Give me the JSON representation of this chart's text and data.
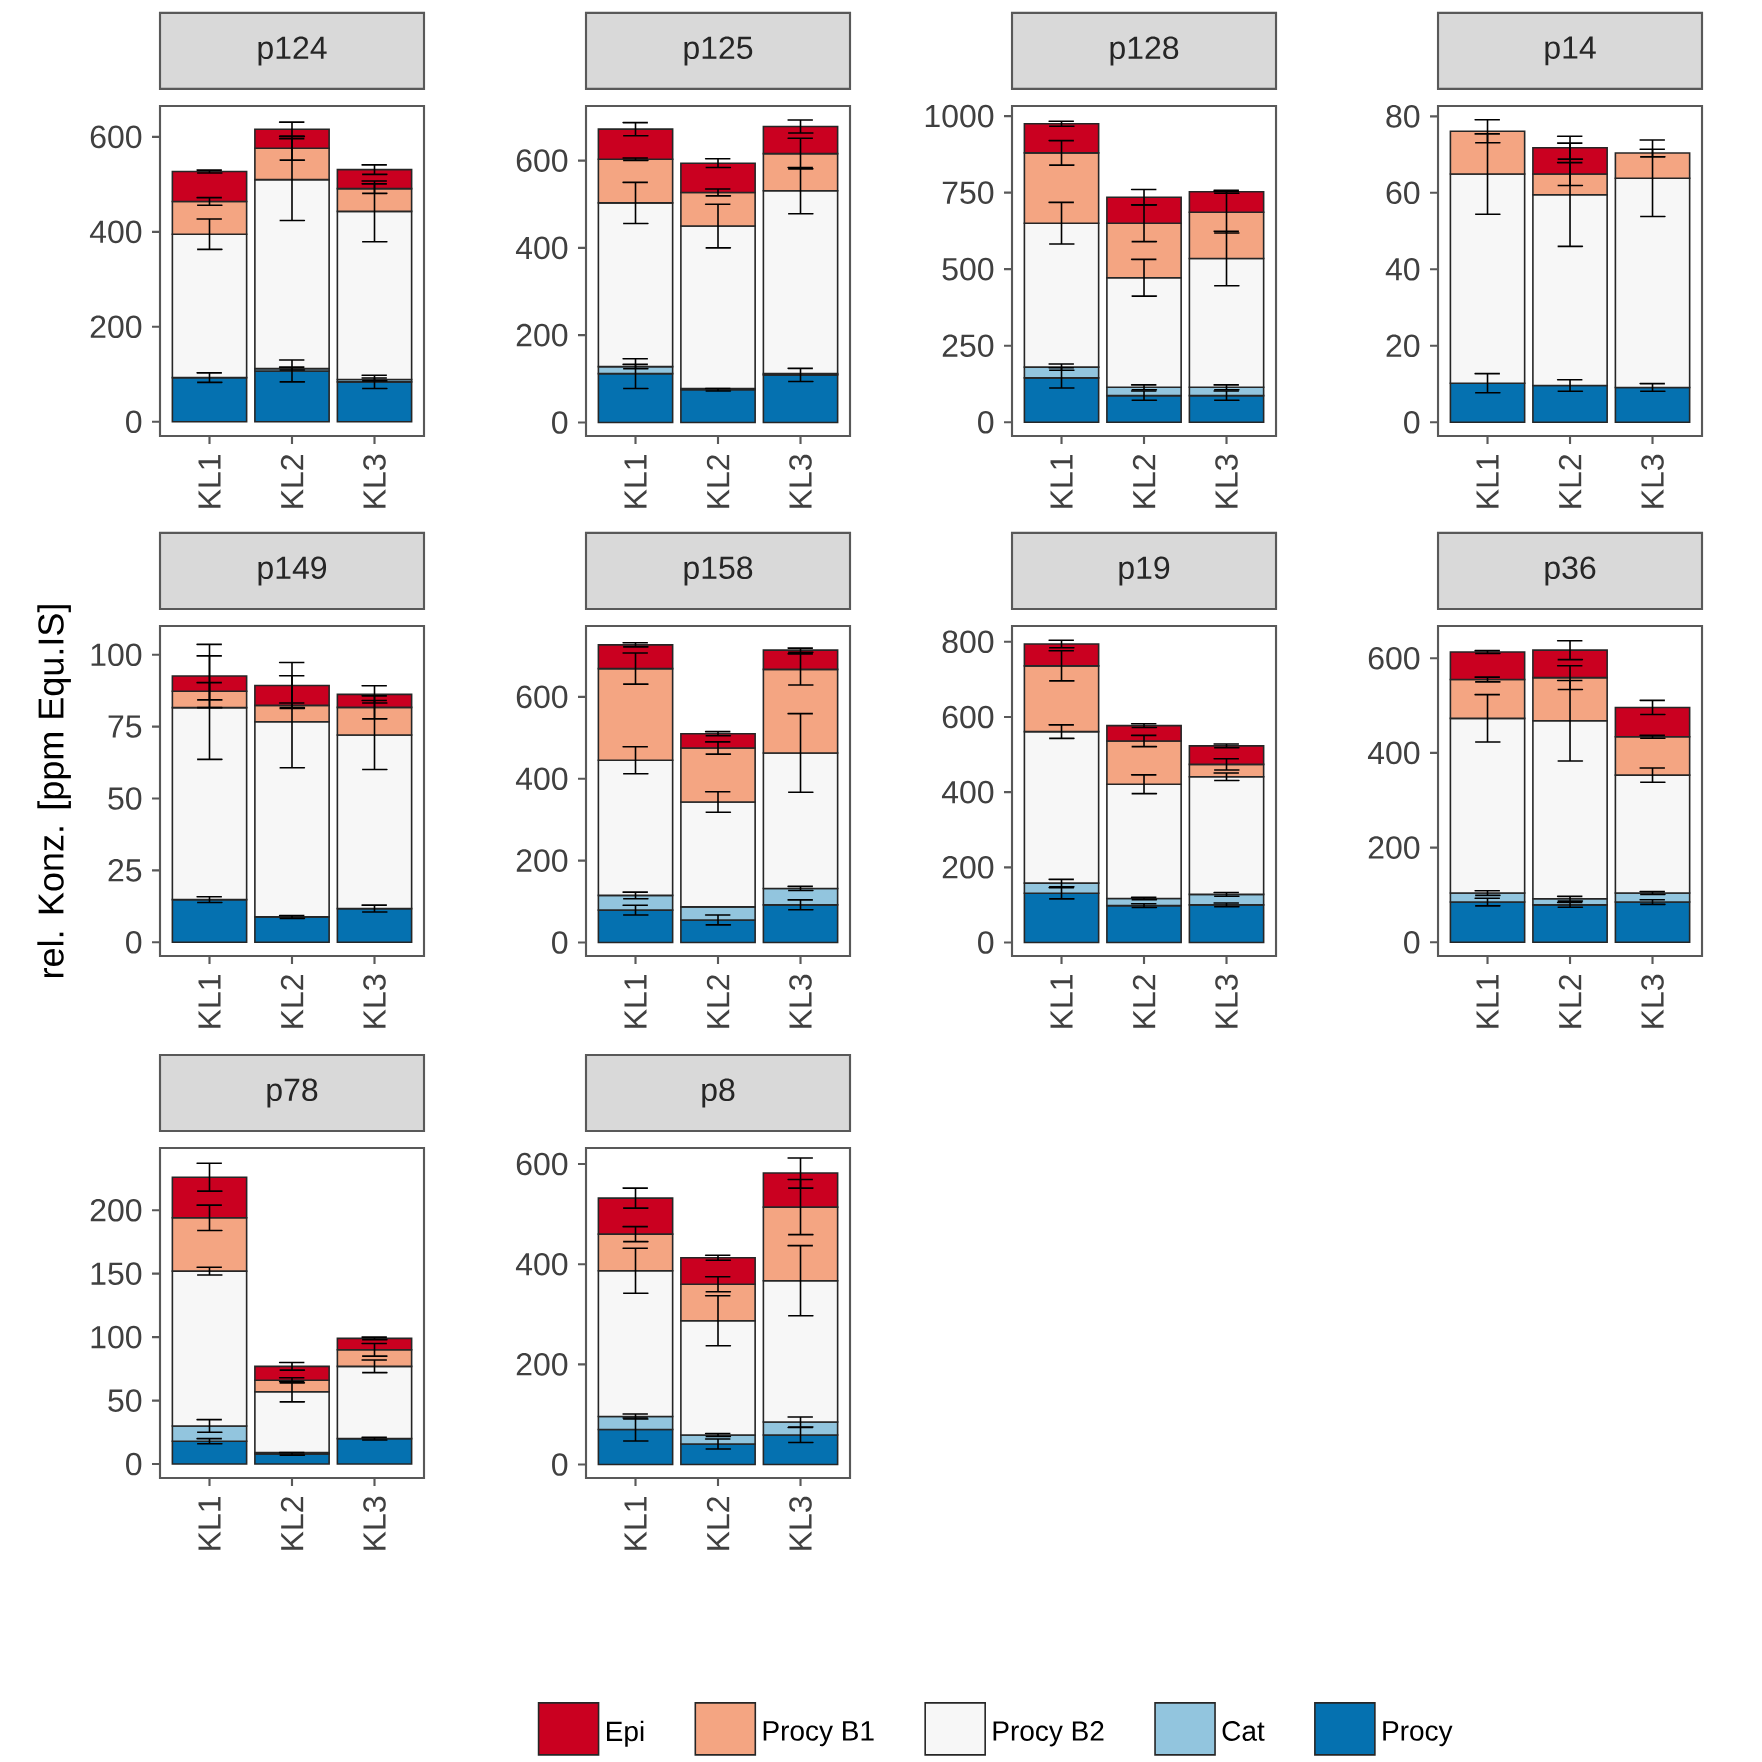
{
  "chart_data": [
    {
      "type": "bar",
      "title": "p124",
      "categories": [
        "KL1",
        "KL2",
        "KL3"
      ],
      "stacked": true,
      "ylim": [
        -30,
        665
      ],
      "yticks": [
        0,
        200,
        400,
        600
      ],
      "series": [
        {
          "color": "#0571b0",
          "values": [
            93,
            107,
            84
          ],
          "errors": [
            10,
            23,
            14
          ]
        },
        {
          "color": "#92c5de",
          "values": [
            null,
            5,
            5
          ],
          "errors": [
            null,
            3,
            3
          ]
        },
        {
          "color": "#f7f7f7",
          "values": [
            302,
            398,
            354
          ],
          "errors": [
            32,
            86,
            64
          ]
        },
        {
          "color": "#f4a582",
          "values": [
            69,
            66,
            48
          ],
          "errors": [
            8,
            25,
            10
          ]
        },
        {
          "color": "#ca0020",
          "values": [
            63,
            40,
            40
          ],
          "errors": [
            3,
            15,
            10
          ]
        }
      ]
    },
    {
      "type": "bar",
      "title": "p125",
      "categories": [
        "KL1",
        "KL2",
        "KL3"
      ],
      "stacked": true,
      "ylim": [
        -31,
        725
      ],
      "yticks": [
        0,
        200,
        400,
        600
      ],
      "series": [
        {
          "color": "#0571b0",
          "values": [
            112,
            75,
            109
          ],
          "errors": [
            34,
            3,
            15
          ]
        },
        {
          "color": "#92c5de",
          "values": [
            16,
            3,
            3
          ],
          "errors": [
            5,
            null,
            null
          ]
        },
        {
          "color": "#f7f7f7",
          "values": [
            375,
            372,
            419
          ],
          "errors": [
            47,
            50,
            53
          ]
        },
        {
          "color": "#f4a582",
          "values": [
            100,
            77,
            85
          ],
          "errors": [
            3,
            8,
            35
          ]
        },
        {
          "color": "#ca0020",
          "values": [
            69,
            67,
            62
          ],
          "errors": [
            15,
            10,
            15
          ]
        }
      ]
    },
    {
      "type": "bar",
      "title": "p128",
      "categories": [
        "KL1",
        "KL2",
        "KL3"
      ],
      "stacked": true,
      "ylim": [
        -45,
        1033
      ],
      "yticks": [
        0,
        250,
        500,
        750,
        1000
      ],
      "series": [
        {
          "color": "#0571b0",
          "values": [
            145,
            87,
            87
          ],
          "errors": [
            33,
            15,
            15
          ]
        },
        {
          "color": "#92c5de",
          "values": [
            35,
            27,
            27
          ],
          "errors": [
            10,
            8,
            8
          ]
        },
        {
          "color": "#f7f7f7",
          "values": [
            470,
            358,
            421
          ],
          "errors": [
            68,
            60,
            89
          ]
        },
        {
          "color": "#f4a582",
          "values": [
            230,
            178,
            151
          ],
          "errors": [
            40,
            60,
            68
          ]
        },
        {
          "color": "#ca0020",
          "values": [
            95,
            85,
            67
          ],
          "errors": [
            8,
            25,
            5
          ]
        }
      ]
    },
    {
      "type": "bar",
      "title": "p14",
      "categories": [
        "KL1",
        "KL2",
        "KL3"
      ],
      "stacked": true,
      "ylim": [
        -3.6,
        82.7
      ],
      "yticks": [
        0,
        20,
        40,
        60,
        80
      ],
      "series": [
        {
          "color": "#0571b0",
          "values": [
            10.2,
            9.6,
            9.1
          ],
          "errors": [
            2.5,
            1.5,
            1
          ]
        },
        {
          "color": "#f7f7f7",
          "values": [
            54.7,
            49.9,
            54.7
          ],
          "errors": [
            10.5,
            13.5,
            10
          ]
        },
        {
          "color": "#f4a582",
          "values": [
            11.2,
            5.4,
            6.6
          ],
          "errors": [
            3,
            3,
            1
          ]
        },
        {
          "color": "#ca0020",
          "values": [
            null,
            6.9,
            null
          ],
          "errors": [
            null,
            3,
            null
          ]
        }
      ]
    },
    {
      "type": "bar",
      "title": "p149",
      "ylabel": "rel. Konz. [ppm Equ.IS]",
      "categories": [
        "KL1",
        "KL2",
        "KL3"
      ],
      "stacked": true,
      "ylim": [
        -4.8,
        110
      ],
      "yticks": [
        0,
        25,
        50,
        75,
        100
      ],
      "series": [
        {
          "color": "#0571b0",
          "values": [
            14.8,
            8.8,
            11.7
          ],
          "errors": [
            1,
            0.5,
            1.2
          ]
        },
        {
          "color": "#f7f7f7",
          "values": [
            66.8,
            67.9,
            60.4
          ],
          "errors": [
            18,
            16,
            12
          ]
        },
        {
          "color": "#f4a582",
          "values": [
            5.7,
            5.7,
            9.6
          ],
          "errors": [
            3,
            0.8,
            4
          ]
        },
        {
          "color": "#ca0020",
          "values": [
            5.3,
            6.9,
            4.5
          ],
          "errors": [
            11,
            8,
            3
          ]
        }
      ]
    },
    {
      "type": "bar",
      "title": "p158",
      "categories": [
        "KL1",
        "KL2",
        "KL3"
      ],
      "stacked": true,
      "ylim": [
        -33,
        773
      ],
      "yticks": [
        0,
        200,
        400,
        600
      ],
      "series": [
        {
          "color": "#0571b0",
          "values": [
            79,
            55,
            92
          ],
          "errors": [
            12,
            12,
            12
          ]
        },
        {
          "color": "#92c5de",
          "values": [
            36,
            32,
            40
          ],
          "errors": [
            8,
            null,
            5
          ]
        },
        {
          "color": "#f7f7f7",
          "values": [
            330,
            256,
            331
          ],
          "errors": [
            33,
            25,
            96
          ]
        },
        {
          "color": "#f4a582",
          "values": [
            224,
            132,
            204
          ],
          "errors": [
            38,
            15,
            38
          ]
        },
        {
          "color": "#ca0020",
          "values": [
            58,
            35,
            47
          ],
          "errors": [
            5,
            5,
            5
          ]
        }
      ]
    },
    {
      "type": "bar",
      "title": "p19",
      "categories": [
        "KL1",
        "KL2",
        "KL3"
      ],
      "stacked": true,
      "ylim": [
        -36,
        842
      ],
      "yticks": [
        0,
        200,
        400,
        600,
        800
      ],
      "series": [
        {
          "color": "#0571b0",
          "values": [
            131,
            98,
            100
          ],
          "errors": [
            15,
            5,
            5
          ]
        },
        {
          "color": "#92c5de",
          "values": [
            27,
            19,
            28
          ],
          "errors": [
            10,
            3,
            5
          ]
        },
        {
          "color": "#f7f7f7",
          "values": [
            403,
            304,
            313
          ],
          "errors": [
            18,
            25,
            10
          ]
        },
        {
          "color": "#f4a582",
          "values": [
            175,
            115,
            33
          ],
          "errors": [
            40,
            15,
            15
          ]
        },
        {
          "color": "#ca0020",
          "values": [
            58,
            41,
            49
          ],
          "errors": [
            10,
            5,
            5
          ]
        }
      ]
    },
    {
      "type": "bar",
      "title": "p36",
      "categories": [
        "KL1",
        "KL2",
        "KL3"
      ],
      "stacked": true,
      "ylim": [
        -29,
        668
      ],
      "yticks": [
        0,
        200,
        400,
        600
      ],
      "series": [
        {
          "color": "#0571b0",
          "values": [
            85,
            79,
            85
          ],
          "errors": [
            8,
            5,
            5
          ]
        },
        {
          "color": "#92c5de",
          "values": [
            19,
            13,
            19
          ],
          "errors": [
            5,
            5,
            3
          ]
        },
        {
          "color": "#f7f7f7",
          "values": [
            369,
            376,
            249
          ],
          "errors": [
            50,
            85,
            15
          ]
        },
        {
          "color": "#f4a582",
          "values": [
            82,
            91,
            81
          ],
          "errors": [
            5,
            25,
            3
          ]
        },
        {
          "color": "#ca0020",
          "values": [
            58,
            58,
            62
          ],
          "errors": [
            3,
            20,
            15
          ]
        }
      ]
    },
    {
      "type": "bar",
      "title": "p78",
      "categories": [
        "KL1",
        "KL2",
        "KL3"
      ],
      "stacked": true,
      "ylim": [
        -11,
        249
      ],
      "yticks": [
        0,
        50,
        100,
        150,
        200
      ],
      "series": [
        {
          "color": "#0571b0",
          "values": [
            18,
            8,
            20
          ],
          "errors": [
            2,
            1,
            1
          ]
        },
        {
          "color": "#92c5de",
          "values": [
            12,
            1,
            null
          ],
          "errors": [
            5,
            null,
            null
          ]
        },
        {
          "color": "#f7f7f7",
          "values": [
            122,
            48,
            57
          ],
          "errors": [
            3,
            8,
            5
          ]
        },
        {
          "color": "#f4a582",
          "values": [
            42,
            9,
            13
          ],
          "errors": [
            10,
            2,
            5
          ]
        },
        {
          "color": "#ca0020",
          "values": [
            32,
            11,
            9
          ],
          "errors": [
            11,
            3,
            1
          ]
        }
      ]
    },
    {
      "type": "bar",
      "title": "p8",
      "categories": [
        "KL1",
        "KL2",
        "KL3"
      ],
      "stacked": true,
      "legend": "bottom",
      "ylim": [
        -27,
        632
      ],
      "yticks": [
        0,
        200,
        400,
        600
      ],
      "series": [
        {
          "name": "Procy",
          "color": "#0571b0",
          "values": [
            70,
            41,
            59
          ],
          "errors": [
            23,
            10,
            15
          ]
        },
        {
          "name": "Cat",
          "color": "#92c5de",
          "values": [
            26,
            18,
            26
          ],
          "errors": [
            5,
            3,
            10
          ]
        },
        {
          "name": "Procy B2",
          "color": "#f7f7f7",
          "values": [
            291,
            228,
            282
          ],
          "errors": [
            45,
            50,
            70
          ]
        },
        {
          "name": "Procy B1",
          "color": "#f4a582",
          "values": [
            73,
            73,
            147
          ],
          "errors": [
            15,
            15,
            55
          ]
        },
        {
          "name": "Epi",
          "color": "#ca0020",
          "values": [
            72,
            53,
            68
          ],
          "errors": [
            20,
            5,
            30
          ]
        }
      ]
    }
  ]
}
